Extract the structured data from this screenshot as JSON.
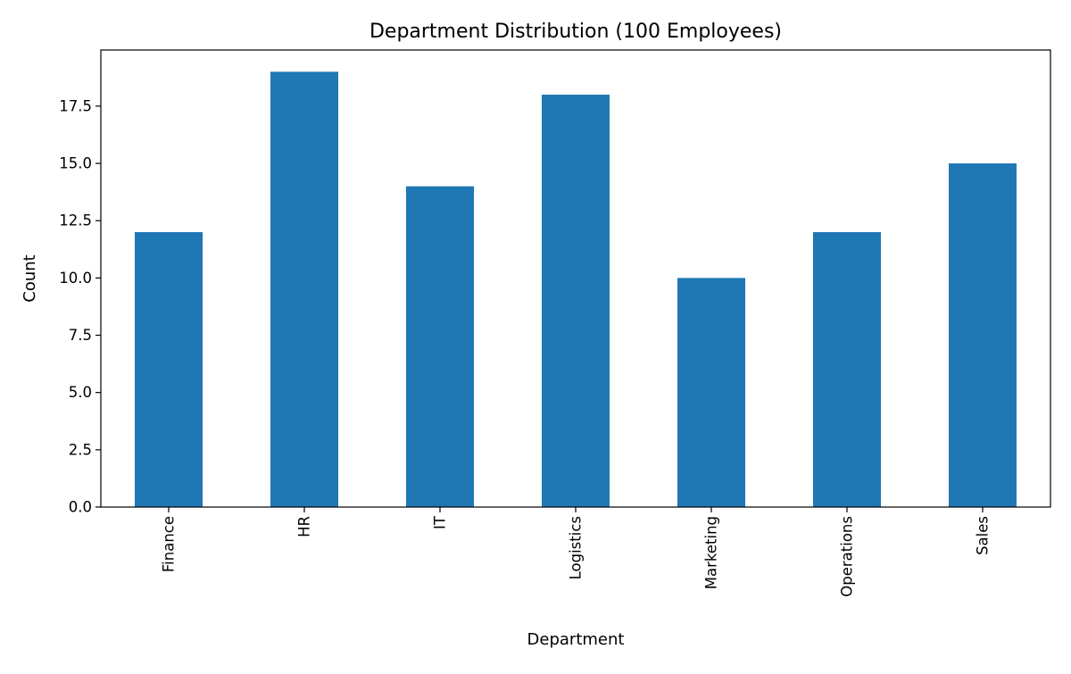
{
  "chart_data": {
    "type": "bar",
    "title": "Department Distribution (100 Employees)",
    "xlabel": "Department",
    "ylabel": "Count",
    "categories": [
      "Finance",
      "HR",
      "IT",
      "Logistics",
      "Marketing",
      "Operations",
      "Sales"
    ],
    "values": [
      12,
      19,
      14,
      18,
      10,
      12,
      15
    ],
    "ylim": [
      0,
      19.95
    ],
    "yticks": [
      0.0,
      2.5,
      5.0,
      7.5,
      10.0,
      12.5,
      15.0,
      17.5
    ],
    "ytick_labels": [
      "0.0",
      "2.5",
      "5.0",
      "7.5",
      "10.0",
      "12.5",
      "15.0",
      "17.5"
    ],
    "bar_color": "#1f77b4",
    "grid": false,
    "legend": "none",
    "xtick_rotation": "vertical"
  }
}
